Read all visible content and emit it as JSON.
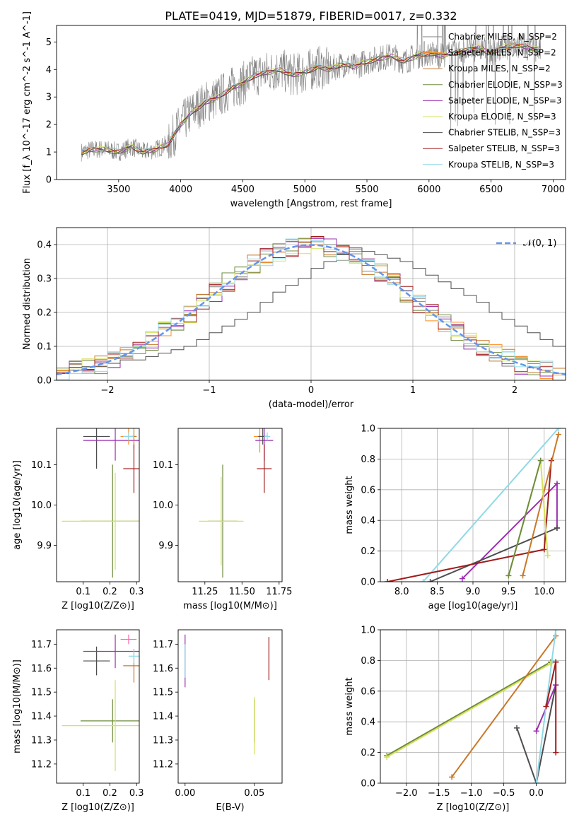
{
  "title": "PLATE=0419, MJD=51879, FIBERID=0017, z=0.332",
  "colors": {
    "chabrier_miles": "#808080",
    "salpeter_miles": "#ff8c1a",
    "kroupa_miles": "#c8782a",
    "chabrier_elodie": "#6e8b3d",
    "salpeter_elodie": "#9b30b0",
    "kroupa_elodie": "#d4e25a",
    "chabrier_stelib": "#4d4d4d",
    "salpeter_stelib": "#a01c1c",
    "kroupa_stelib": "#8fd9e6",
    "normal": "#6495ed",
    "data_spectrum": "#808080"
  },
  "chart_data": [
    {
      "id": "spectrum",
      "type": "line",
      "xlabel": "wavelength [Angstrom, rest frame]",
      "ylabel": "Flux [f_λ 10^-17 erg cm^-2 s^-1 A^-1]",
      "xlim": [
        3000,
        7100
      ],
      "ylim": [
        0,
        5.6
      ],
      "xticks": [
        "3500",
        "4000",
        "4500",
        "5000",
        "5500",
        "6000",
        "6500",
        "7000"
      ],
      "yticks": [
        "0",
        "1",
        "2",
        "3",
        "4",
        "5"
      ],
      "grid": false,
      "legend": "right",
      "continuum": {
        "x": [
          3200,
          3300,
          3400,
          3500,
          3600,
          3700,
          3800,
          3900,
          4000,
          4100,
          4200,
          4300,
          4400,
          4500,
          4600,
          4700,
          4800,
          4900,
          5000,
          5100,
          5200,
          5300,
          5400,
          5500,
          5600,
          5700,
          5800,
          5900,
          6000,
          6100,
          6200,
          6300,
          6400,
          6500,
          6600,
          6700,
          6800,
          6900
        ],
        "y": [
          1.0,
          1.1,
          1.1,
          1.0,
          1.2,
          1.0,
          1.1,
          1.3,
          2.0,
          2.5,
          2.8,
          3.0,
          3.3,
          3.5,
          3.8,
          3.9,
          4.0,
          3.8,
          3.9,
          4.1,
          4.0,
          4.2,
          4.1,
          4.3,
          4.4,
          4.5,
          4.3,
          4.5,
          4.6,
          4.5,
          4.6,
          4.7,
          4.8,
          4.6,
          4.8,
          4.9,
          4.8,
          4.7
        ]
      },
      "series": [
        {
          "name": "Chabrier MILES, N_SSP=2",
          "color": "#808080"
        },
        {
          "name": "Salpeter MILES, N_SSP=2",
          "color": "#ff8c1a"
        },
        {
          "name": "Kroupa MILES, N_SSP=2",
          "color": "#c8782a"
        },
        {
          "name": "Chabrier ELODIE, N_SSP=3",
          "color": "#6e8b3d"
        },
        {
          "name": "Salpeter ELODIE, N_SSP=3",
          "color": "#9b30b0"
        },
        {
          "name": "Kroupa ELODIE, N_SSP=3",
          "color": "#d4e25a"
        },
        {
          "name": "Chabrier STELIB, N_SSP=3",
          "color": "#4d4d4d"
        },
        {
          "name": "Salpeter STELIB, N_SSP=3",
          "color": "#a01c1c"
        },
        {
          "name": "Kroupa STELIB, N_SSP=3",
          "color": "#8fd9e6"
        }
      ]
    },
    {
      "id": "residuals",
      "type": "line",
      "xlabel": "(data-model)/error",
      "ylabel": "Normed distribution",
      "xlim": [
        -2.5,
        2.5
      ],
      "ylim": [
        0,
        0.45
      ],
      "xticks": [
        "−2",
        "−1",
        "0",
        "1",
        "2"
      ],
      "yticks": [
        "0.0",
        "0.1",
        "0.2",
        "0.3",
        "0.4"
      ],
      "grid": true,
      "legend": "top-right",
      "legend_label": "𝒩(0, 1)",
      "bins": 40,
      "dark_hist": [
        0.02,
        0.03,
        0.04,
        0.04,
        0.05,
        0.06,
        0.06,
        0.07,
        0.08,
        0.09,
        0.1,
        0.12,
        0.14,
        0.16,
        0.18,
        0.2,
        0.23,
        0.26,
        0.28,
        0.3,
        0.33,
        0.35,
        0.37,
        0.39,
        0.38,
        0.37,
        0.36,
        0.35,
        0.33,
        0.31,
        0.29,
        0.27,
        0.25,
        0.23,
        0.2,
        0.18,
        0.16,
        0.14,
        0.12,
        0.1
      ]
    },
    {
      "id": "z_age",
      "type": "scatter",
      "xlabel": "Z [log10(Z/Z⊙)]",
      "ylabel": "age  [log10(age/yr)]",
      "xlim": [
        0.0,
        0.31
      ],
      "ylim": [
        9.81,
        10.19
      ],
      "xticks": [
        "0.1",
        "0.2",
        "0.3"
      ],
      "yticks": [
        "9.9",
        "10.0",
        "10.1"
      ],
      "points": [
        {
          "x": 0.15,
          "y": 10.17,
          "xerr": 0.05,
          "yerr": 0.08,
          "color": "#4d4d4d"
        },
        {
          "x": 0.22,
          "y": 10.16,
          "xerr": 0.12,
          "yerr": 0.05,
          "color": "#9b30b0"
        },
        {
          "x": 0.27,
          "y": 10.17,
          "xerr": 0.03,
          "yerr": 0.02,
          "color": "#ff8c1a"
        },
        {
          "x": 0.29,
          "y": 10.17,
          "xerr": 0.01,
          "yerr": 0.03,
          "color": "#c8782a"
        },
        {
          "x": 0.29,
          "y": 10.09,
          "xerr": 0.04,
          "yerr": 0.06,
          "color": "#a01c1c"
        },
        {
          "x": 0.21,
          "y": 9.96,
          "xerr": 0.12,
          "yerr": 0.14,
          "color": "#6e8b3d"
        },
        {
          "x": 0.22,
          "y": 9.96,
          "xerr": 0.2,
          "yerr": 0.12,
          "color": "#d4e25a"
        },
        {
          "x": 0.27,
          "y": 10.17,
          "xerr": 0.02,
          "yerr": 0.01,
          "color": "#8fd9e6"
        }
      ]
    },
    {
      "id": "mass_age",
      "type": "scatter",
      "xlabel": "mass [log10(M/M⊙)]",
      "ylabel": "",
      "xlim": [
        11.07,
        11.77
      ],
      "ylim": [
        9.81,
        10.19
      ],
      "xticks": [
        "11.25",
        "11.50",
        "11.75"
      ],
      "yticks": [
        "9.9",
        "10.0",
        "10.1"
      ],
      "points": [
        {
          "x": 11.62,
          "y": 10.17,
          "xerr": 0.04,
          "yerr": 0.04,
          "color": "#ff8c1a"
        },
        {
          "x": 11.65,
          "y": 10.16,
          "xerr": 0.06,
          "yerr": 0.05,
          "color": "#9b30b0"
        },
        {
          "x": 11.65,
          "y": 10.09,
          "xerr": 0.05,
          "yerr": 0.06,
          "color": "#a01c1c"
        },
        {
          "x": 11.64,
          "y": 10.17,
          "xerr": 0.03,
          "yerr": 0.02,
          "color": "#4d4d4d"
        },
        {
          "x": 11.37,
          "y": 9.96,
          "xerr": 0.1,
          "yerr": 0.14,
          "color": "#6e8b3d"
        },
        {
          "x": 11.36,
          "y": 9.96,
          "xerr": 0.15,
          "yerr": 0.11,
          "color": "#d4e25a"
        },
        {
          "x": 11.67,
          "y": 10.17,
          "xerr": 0.02,
          "yerr": 0.01,
          "color": "#8fd9e6"
        }
      ]
    },
    {
      "id": "age_weight",
      "type": "line",
      "xlabel": "age  [log10(age/yr)]",
      "ylabel": "mass weight",
      "xlim": [
        7.7,
        10.3
      ],
      "ylim": [
        0,
        1.0
      ],
      "xticks": [
        "8.0",
        "8.5",
        "9.0",
        "9.5",
        "10.0"
      ],
      "yticks": [
        "0.0",
        "0.2",
        "0.4",
        "0.6",
        "0.8",
        "1.0"
      ],
      "grid": true,
      "series": [
        {
          "color": "#8fd9e6",
          "x": [
            8.3,
            10.2
          ],
          "y": [
            0.0,
            1.0
          ]
        },
        {
          "color": "#9b30b0",
          "x": [
            8.85,
            10.18,
            10.18
          ],
          "y": [
            0.02,
            0.64,
            0.35
          ]
        },
        {
          "color": "#4d4d4d",
          "x": [
            8.4,
            10.18
          ],
          "y": [
            0.0,
            0.35
          ]
        },
        {
          "color": "#a01c1c",
          "x": [
            7.8,
            10.0,
            10.1
          ],
          "y": [
            0.0,
            0.21,
            0.79
          ]
        },
        {
          "color": "#c8782a",
          "x": [
            9.7,
            10.2
          ],
          "y": [
            0.04,
            0.96
          ]
        },
        {
          "color": "#d4e25a",
          "x": [
            9.5,
            9.95,
            10.05
          ],
          "y": [
            0.04,
            0.79,
            0.17
          ]
        },
        {
          "color": "#6e8b3d",
          "x": [
            9.5,
            9.95
          ],
          "y": [
            0.04,
            0.79
          ]
        }
      ]
    },
    {
      "id": "z_mass",
      "type": "scatter",
      "xlabel": "Z [log10(Z/Z⊙)]",
      "ylabel": "mass [log10(M/M⊙)]",
      "xlim": [
        0.0,
        0.31
      ],
      "ylim": [
        11.12,
        11.76
      ],
      "xticks": [
        "0.1",
        "0.2",
        "0.3"
      ],
      "yticks": [
        "11.2",
        "11.3",
        "11.4",
        "11.5",
        "11.6",
        "11.7"
      ],
      "points": [
        {
          "x": 0.15,
          "y": 11.63,
          "xerr": 0.05,
          "yerr": 0.06,
          "color": "#4d4d4d"
        },
        {
          "x": 0.22,
          "y": 11.67,
          "xerr": 0.12,
          "yerr": 0.07,
          "color": "#9b30b0"
        },
        {
          "x": 0.27,
          "y": 11.72,
          "xerr": 0.03,
          "yerr": 0.02,
          "color": "#ff69b4"
        },
        {
          "x": 0.29,
          "y": 11.61,
          "xerr": 0.04,
          "yerr": 0.07,
          "color": "#c8782a"
        },
        {
          "x": 0.29,
          "y": 11.65,
          "xerr": 0.02,
          "yerr": 0.03,
          "color": "#8fd9e6"
        },
        {
          "x": 0.21,
          "y": 11.38,
          "xerr": 0.12,
          "yerr": 0.09,
          "color": "#6e8b3d"
        },
        {
          "x": 0.22,
          "y": 11.36,
          "xerr": 0.2,
          "yerr": 0.19,
          "color": "#d4e25a"
        }
      ]
    },
    {
      "id": "ebv_mass",
      "type": "scatter",
      "xlabel": "E(B-V)",
      "ylabel": "",
      "xlim": [
        -0.005,
        0.07
      ],
      "ylim": [
        11.12,
        11.76
      ],
      "xticks": [
        "0.00",
        "0.05"
      ],
      "yticks": [
        "11.2",
        "11.3",
        "11.4",
        "11.5",
        "11.6",
        "11.7"
      ],
      "points": [
        {
          "x": 0.0,
          "y": 11.63,
          "xerr": 0.0,
          "yerr": 0.11,
          "color": "#9b30b0"
        },
        {
          "x": 0.0,
          "y": 11.63,
          "xerr": 0.0,
          "yerr": 0.07,
          "color": "#8fd9e6"
        },
        {
          "x": 0.05,
          "y": 11.38,
          "xerr": 0.0,
          "yerr": 0.09,
          "color": "#6e8b3d"
        },
        {
          "x": 0.05,
          "y": 11.36,
          "xerr": 0.0,
          "yerr": 0.12,
          "color": "#d4e25a"
        },
        {
          "x": 0.0605,
          "y": 11.64,
          "xerr": 0.0,
          "yerr": 0.09,
          "color": "#a01c1c"
        }
      ]
    },
    {
      "id": "z_weight",
      "type": "line",
      "xlabel": "Z [log10(Z/Z⊙)]",
      "ylabel": "mass weight",
      "xlim": [
        -2.4,
        0.45
      ],
      "ylim": [
        0,
        1.0
      ],
      "xticks": [
        "−2.0",
        "−1.5",
        "−1.0",
        "−0.5",
        "0.0"
      ],
      "yticks": [
        "0.0",
        "0.2",
        "0.4",
        "0.6",
        "0.8",
        "1.0"
      ],
      "grid": true,
      "series": [
        {
          "color": "#6e8b3d",
          "x": [
            -2.3,
            0.22
          ],
          "y": [
            0.18,
            0.79
          ]
        },
        {
          "color": "#d4e25a",
          "x": [
            -2.3,
            0.22
          ],
          "y": [
            0.17,
            0.78
          ]
        },
        {
          "color": "#c8782a",
          "x": [
            -1.3,
            0.3
          ],
          "y": [
            0.04,
            0.96
          ]
        },
        {
          "color": "#4d4d4d",
          "x": [
            -0.3,
            0.0,
            0.3
          ],
          "y": [
            0.36,
            0.0,
            0.64
          ]
        },
        {
          "color": "#9b30b0",
          "x": [
            0.0,
            0.3
          ],
          "y": [
            0.34,
            0.64
          ]
        },
        {
          "color": "#8fd9e6",
          "x": [
            0.0,
            0.3
          ],
          "y": [
            0.0,
            1.0
          ]
        },
        {
          "color": "#a01c1c",
          "x": [
            0.3,
            0.3,
            0.3
          ],
          "y": [
            0.79,
            0.2,
            0.79
          ]
        },
        {
          "color": "#a01c1c",
          "x": [
            0.15,
            0.3
          ],
          "y": [
            0.5,
            0.79
          ]
        }
      ]
    }
  ]
}
